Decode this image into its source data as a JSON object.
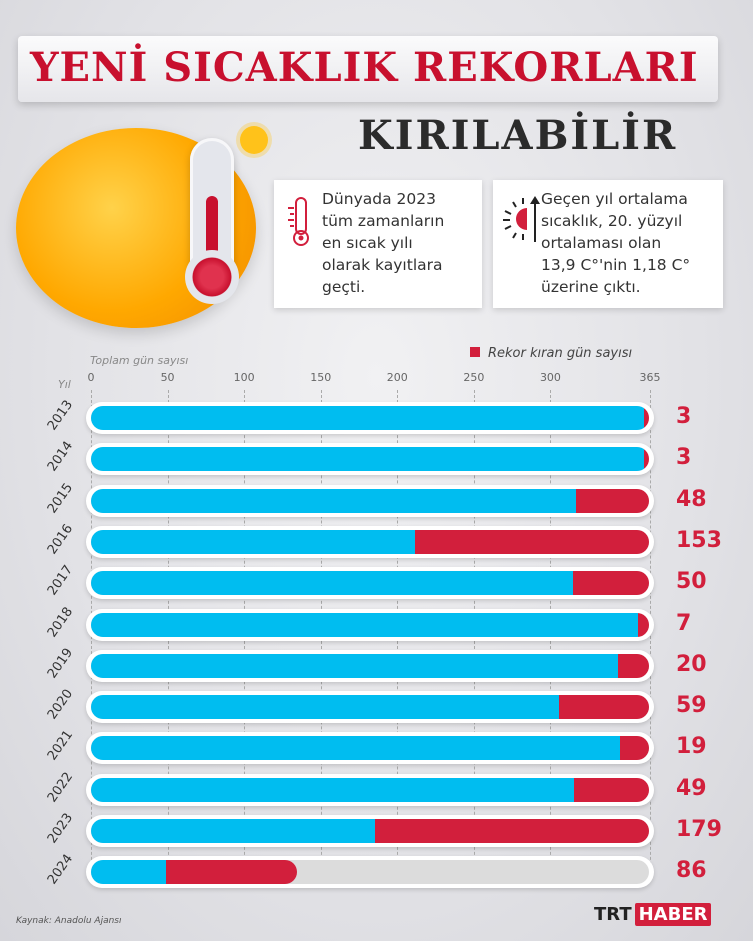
{
  "header": {
    "title_line1": "YENİ SICAKLIK REKORLARI",
    "title_line2": "KIRILABİLİR"
  },
  "cards": [
    {
      "icon": "thermometer-icon",
      "text": "Dünyada 2023\ntüm zamanların\nen sıcak yılı\nolarak kayıtlara\ngeçti."
    },
    {
      "icon": "sun-rising-icon",
      "text": "Geçen yıl ortalama\nsıcaklık, 20. yüzyıl\nortalaması olan\n13,9 C°'nin 1,18 C°\nüzerine çıktı."
    }
  ],
  "colors": {
    "total": "#00bdf0",
    "record": "#d21f3c",
    "remaining": "#dcdcdc"
  },
  "chart_data": {
    "type": "bar",
    "orientation": "horizontal",
    "stacked": true,
    "xlabel": "Toplam gün sayısı",
    "ylabel": "Yıl",
    "xlim": [
      0,
      365
    ],
    "xticks": [
      "0",
      "50",
      "100",
      "150",
      "200",
      "250",
      "300",
      "365"
    ],
    "legend": {
      "label": "Rekor kıran gün sayısı",
      "position": "top-right"
    },
    "categories": [
      "2013",
      "2014",
      "2015",
      "2016",
      "2017",
      "2018",
      "2019",
      "2020",
      "2021",
      "2022",
      "2023",
      "2024"
    ],
    "total_days": [
      365,
      365,
      365,
      365,
      365,
      365,
      365,
      365,
      365,
      365,
      365,
      135
    ],
    "record_days": [
      3,
      3,
      48,
      153,
      50,
      7,
      20,
      59,
      19,
      49,
      179,
      86
    ]
  },
  "footer": {
    "source": "Kaynak: Anadolu Ajansı",
    "logo_left": "TRT",
    "logo_right": "HABER"
  }
}
